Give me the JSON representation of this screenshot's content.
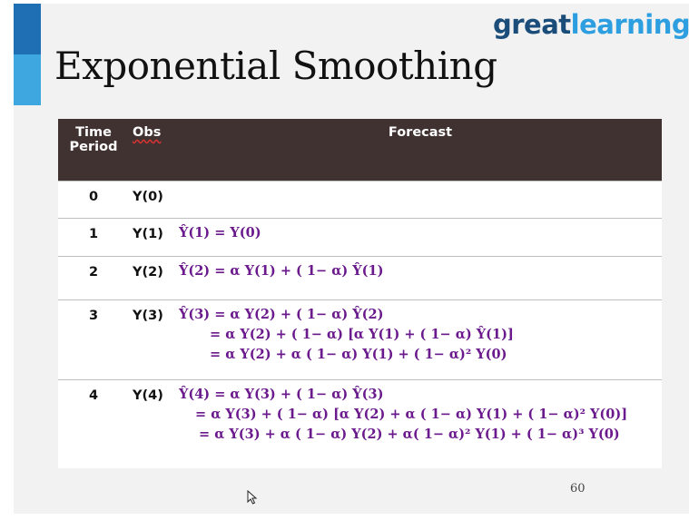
{
  "slide": {
    "title": "Exponential Smoothing",
    "logo": {
      "part1": "great",
      "part2": "learning"
    },
    "page_number": "60"
  },
  "table": {
    "headers": {
      "time": [
        "Time",
        "Period"
      ],
      "obs": "Obs",
      "forecast": "Forecast"
    },
    "rows": [
      {
        "t": "0",
        "obs": "Y(0)",
        "lines": []
      },
      {
        "t": "1",
        "obs": "Y(1)",
        "lines": [
          "Ŷ(1) = Y(0)"
        ]
      },
      {
        "t": "2",
        "obs": "Y(2)",
        "lines": [
          "Ŷ(2) = α Y(1) + ( 1− α) Ŷ(1)"
        ]
      },
      {
        "t": "3",
        "obs": "Y(3)",
        "lines": [
          "Ŷ(3) = α Y(2) + ( 1− α) Ŷ(2)",
          "= α Y(2) + ( 1− α) [α Y(1) + ( 1− α) Ŷ(1)]",
          "= α Y(2) + α ( 1− α) Y(1) + ( 1− α)² Y(0)"
        ]
      },
      {
        "t": "4",
        "obs": "Y(4)",
        "lines": [
          "Ŷ(4) = α Y(3) + ( 1− α) Ŷ(3)",
          "= α Y(3) + ( 1− α) [α Y(2) + α ( 1− α) Y(1) + ( 1− α)² Y(0)]",
          "= α Y(3) + α ( 1− α) Y(2) + α( 1− α)² Y(1) + ( 1− α)³ Y(0)"
        ]
      }
    ]
  },
  "colors": {
    "header_bg": "#403230",
    "formula": "#6a1a8c",
    "accent_dark": "#1f6fb5",
    "accent_light": "#3fa7e0"
  }
}
